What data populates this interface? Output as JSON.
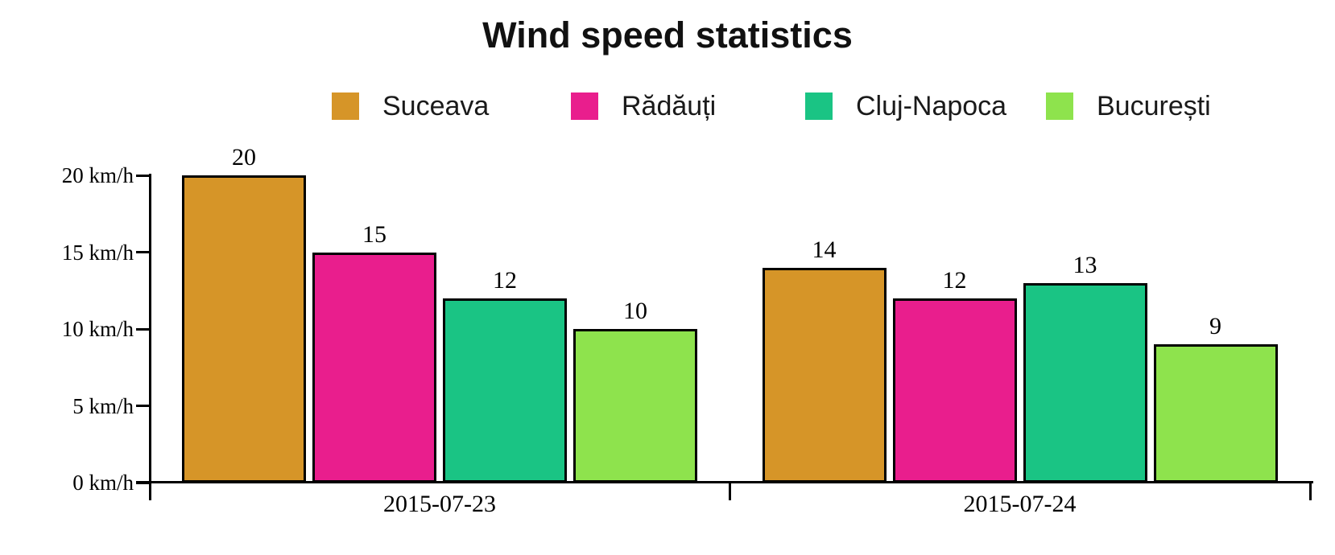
{
  "chart_data": {
    "type": "bar",
    "title": "Wind speed statistics",
    "categories": [
      "2015-07-23",
      "2015-07-24"
    ],
    "series": [
      {
        "name": "Suceava",
        "color": "#D69528",
        "values": [
          20,
          14
        ]
      },
      {
        "name": "Rădăuți",
        "color": "#E91E8D",
        "values": [
          15,
          12
        ]
      },
      {
        "name": "Cluj-Napoca",
        "color": "#1AC484",
        "values": [
          12,
          13
        ]
      },
      {
        "name": "București",
        "color": "#8EE34D",
        "values": [
          10,
          9
        ]
      }
    ],
    "yticks": [
      0,
      5,
      10,
      15,
      20
    ],
    "ytick_labels": [
      "0 km/h",
      "5 km/h",
      "10 km/h",
      "15 km/h",
      "20 km/h"
    ],
    "y_unit": "km/h",
    "ylim": [
      0,
      20
    ],
    "grid": false,
    "legend_position": "top",
    "bar_value_labels_shown": true,
    "axis_color": "#000000",
    "background_color": "#FFFFFF"
  }
}
